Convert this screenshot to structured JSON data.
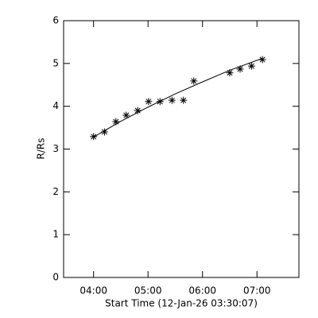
{
  "chart_data": {
    "type": "scatter",
    "x_label": "Start Time (12-Jan-26 03:30:07)",
    "y_label": "R/Rs",
    "xlim": [
      3.45,
      7.77
    ],
    "ylim": [
      0,
      6
    ],
    "xticks": [
      {
        "value": 4,
        "label": "04:00"
      },
      {
        "value": 5,
        "label": "05:00"
      },
      {
        "value": 6,
        "label": "06:00"
      },
      {
        "value": 7,
        "label": "07:00"
      }
    ],
    "yticks": [
      0,
      1,
      2,
      3,
      4,
      5,
      6
    ],
    "color": "#000000",
    "points": {
      "x": [
        4.0,
        4.2,
        4.41,
        4.6,
        4.81,
        5.01,
        5.22,
        5.44,
        5.65,
        5.84,
        6.5,
        6.69,
        6.9,
        7.1
      ],
      "y": [
        3.29,
        3.4,
        3.64,
        3.79,
        3.9,
        4.11,
        4.11,
        4.14,
        4.14,
        4.59,
        4.78,
        4.87,
        4.94,
        5.09
      ]
    },
    "fit": {
      "x": [
        4.0,
        4.5,
        5.0,
        5.5,
        6.0,
        6.5,
        7.1
      ],
      "y": [
        3.28,
        3.65,
        3.98,
        4.29,
        4.57,
        4.84,
        5.12
      ]
    }
  }
}
